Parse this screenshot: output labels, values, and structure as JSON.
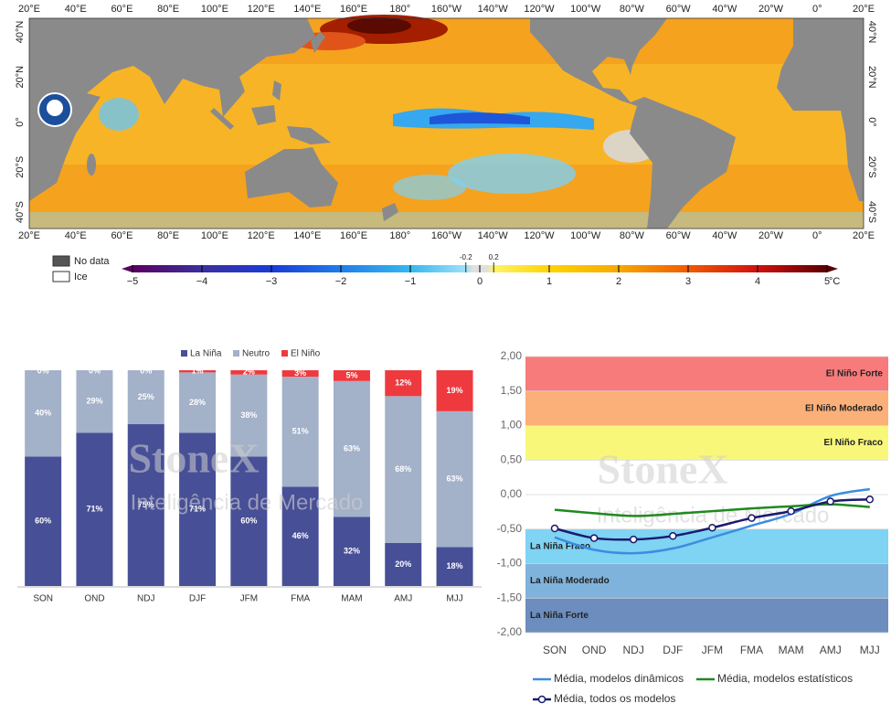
{
  "map": {
    "lon_labels_top": [
      "20°E",
      "40°E",
      "60°E",
      "80°E",
      "100°E",
      "120°E",
      "140°E",
      "160°E",
      "180°",
      "160°W",
      "140°W",
      "120°W",
      "100°W",
      "80°W",
      "60°W",
      "40°W",
      "20°W",
      "0°",
      "20°E"
    ],
    "lon_labels_bottom": [
      "20°E",
      "40°E",
      "60°E",
      "80°E",
      "100°E",
      "120°E",
      "140°E",
      "160°E",
      "180°",
      "160°W",
      "140°W",
      "120°W",
      "100°W",
      "80°W",
      "60°W",
      "40°W",
      "20°W",
      "0°",
      "20°E"
    ],
    "lat_labels_left": [
      "40°N",
      "20°N",
      "0°",
      "20°S",
      "40°S"
    ],
    "lat_labels_right": [
      "40°N",
      "20°N",
      "0°",
      "20°S",
      "40°S"
    ],
    "legend": [
      "No data",
      "Ice"
    ],
    "colorbar": {
      "ticks": [
        {
          "value": -5,
          "label": "−5"
        },
        {
          "value": -4,
          "label": "−4"
        },
        {
          "value": -3,
          "label": "−3"
        },
        {
          "value": -2,
          "label": "−2"
        },
        {
          "value": -1,
          "label": "−1"
        },
        0,
        1,
        2,
        3,
        4,
        5
      ],
      "minor_ticks": [
        -0.2,
        0.2
      ],
      "unit": "°C"
    }
  },
  "chart_data": [
    {
      "type": "stacked_bar",
      "watermark": "StoneX",
      "watermark_subtitle": "Inteligência de Mercado",
      "categories": [
        "SON",
        "OND",
        "NDJ",
        "DJF",
        "JFM",
        "FMA",
        "MAM",
        "AMJ",
        "MJJ"
      ],
      "series": [
        {
          "name": "La Niña",
          "color": "#474f97",
          "values": [
            60,
            71,
            75,
            71,
            60,
            46,
            32,
            20,
            18
          ],
          "value_labels": [
            "60%",
            "71%",
            "75%",
            "71%",
            "60%",
            "46%",
            "32%",
            "20%",
            "18%"
          ]
        },
        {
          "name": "Neutro",
          "color": "#a3b1c9",
          "values": [
            40,
            29,
            25,
            28,
            38,
            51,
            63,
            68,
            63
          ],
          "value_labels": [
            "40%",
            "29%",
            "25%",
            "28%",
            "38%",
            "51%",
            "63%",
            "68%",
            "63%"
          ]
        },
        {
          "name": "El Niño",
          "color": "#ee3a3e",
          "values": [
            0,
            0,
            0,
            1,
            2,
            3,
            5,
            12,
            19
          ],
          "value_labels": [
            "0%",
            "0%",
            "0%",
            "1%",
            "2%",
            "3%",
            "5%",
            "12%",
            "19%"
          ]
        }
      ],
      "legend": "top"
    },
    {
      "type": "line",
      "watermark": "StoneX",
      "watermark_subtitle": "Inteligência de Mercado",
      "categories": [
        "SON",
        "OND",
        "NDJ",
        "DJF",
        "JFM",
        "FMA",
        "MAM",
        "AMJ",
        "MJJ"
      ],
      "ylim": [
        -2,
        2
      ],
      "yticks": [
        {
          "value": 2,
          "label": "2,00"
        },
        {
          "value": 1.5,
          "label": "1,50"
        },
        {
          "value": 1,
          "label": "1,00"
        },
        {
          "value": 0.5,
          "label": "0,50"
        },
        {
          "value": 0,
          "label": "0,00"
        },
        {
          "value": -0.5,
          "label": "-0,50"
        },
        {
          "value": -1,
          "label": "-1,00"
        },
        {
          "value": -1.5,
          "label": "-1,50"
        },
        {
          "value": -2,
          "label": "-2,00"
        }
      ],
      "grid": true,
      "bands": [
        {
          "label": "El Niño Forte",
          "from": 1.5,
          "to": 2,
          "color": "#f77b7b"
        },
        {
          "label": "El Niño Moderado",
          "from": 1,
          "to": 1.5,
          "color": "#fbb07a"
        },
        {
          "label": "El Niño Fraco",
          "from": 0.5,
          "to": 1,
          "color": "#f8f77a"
        },
        {
          "label": "La Niña Fraco",
          "from": -1,
          "to": -0.5,
          "color": "#7fd3f3"
        },
        {
          "label": "La Niña Moderado",
          "from": -1.5,
          "to": -1,
          "color": "#7fb3dc"
        },
        {
          "label": "La Niña Forte",
          "from": -2,
          "to": -1.5,
          "color": "#6c8dbd"
        }
      ],
      "series": [
        {
          "name": "Média, modelos dinâmicos",
          "color": "#3a8de0",
          "values": [
            -0.62,
            -0.8,
            -0.85,
            -0.78,
            -0.62,
            -0.45,
            -0.28,
            -0.02,
            0.08
          ]
        },
        {
          "name": "Média, modelos estatísticos",
          "color": "#1f8a1f",
          "values": [
            -0.22,
            -0.27,
            -0.31,
            -0.28,
            -0.24,
            -0.2,
            -0.17,
            -0.14,
            -0.18
          ]
        },
        {
          "name": "Média, todos os modelos",
          "color": "#1a1a6e",
          "marker": true,
          "values": [
            -0.49,
            -0.63,
            -0.65,
            -0.6,
            -0.48,
            -0.34,
            -0.24,
            -0.1,
            -0.07
          ]
        }
      ],
      "legend": "bottom"
    }
  ]
}
